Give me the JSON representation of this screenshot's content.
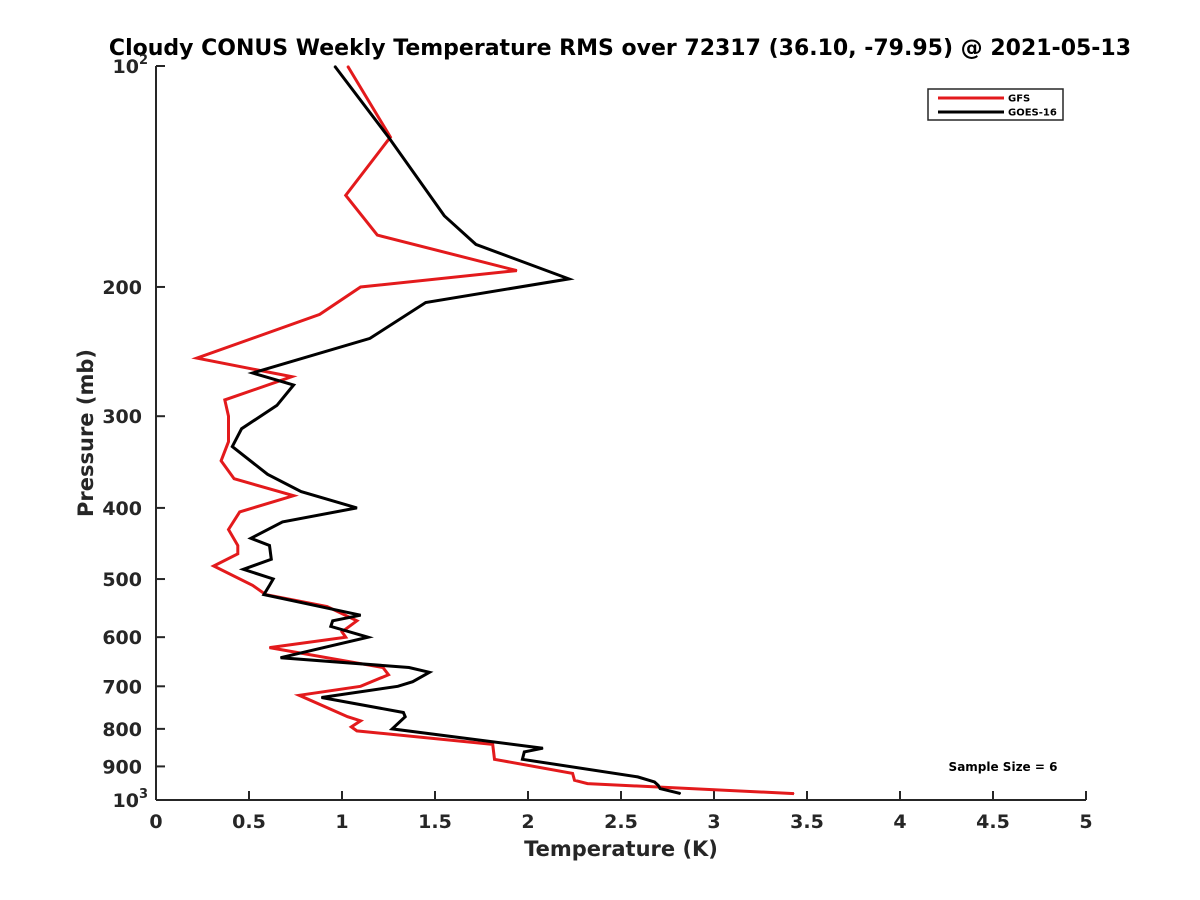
{
  "chart_data": {
    "type": "line",
    "title": "Cloudy CONUS Weekly Temperature RMS over 72317 (36.10, -79.95) @ 2021-05-13",
    "xlabel": "Temperature (K)",
    "ylabel": "Pressure (mb)",
    "xlim": [
      0,
      5
    ],
    "ylim": [
      100,
      1000
    ],
    "y_scale": "log",
    "y_reversed": true,
    "x_ticks": [
      "0",
      "0.5",
      "1",
      "1.5",
      "2",
      "2.5",
      "3",
      "3.5",
      "4",
      "4.5",
      "5"
    ],
    "x_tick_values": [
      0,
      0.5,
      1,
      1.5,
      2,
      2.5,
      3,
      3.5,
      4,
      4.5,
      5
    ],
    "y_ticks": [
      {
        "value": 100,
        "base": "10",
        "exp": "2"
      },
      {
        "value": 200,
        "label": "200"
      },
      {
        "value": 300,
        "label": "300"
      },
      {
        "value": 400,
        "label": "400"
      },
      {
        "value": 500,
        "label": "500"
      },
      {
        "value": 600,
        "label": "600"
      },
      {
        "value": 700,
        "label": "700"
      },
      {
        "value": 800,
        "label": "800"
      },
      {
        "value": 900,
        "label": "900"
      },
      {
        "value": 1000,
        "base": "10",
        "exp": "3"
      }
    ],
    "grid": false,
    "legend_position": "top-right",
    "annotation": "Sample Size = 6",
    "series": [
      {
        "name": "GFS",
        "color": "#e31a1c",
        "points": [
          [
            1.03,
            100
          ],
          [
            1.26,
            125
          ],
          [
            1.02,
            150
          ],
          [
            1.19,
            170
          ],
          [
            1.94,
            190
          ],
          [
            1.1,
            200
          ],
          [
            0.88,
            218
          ],
          [
            0.22,
            250
          ],
          [
            0.73,
            265
          ],
          [
            0.37,
            285
          ],
          [
            0.39,
            300
          ],
          [
            0.39,
            325
          ],
          [
            0.35,
            345
          ],
          [
            0.42,
            365
          ],
          [
            0.74,
            385
          ],
          [
            0.45,
            405
          ],
          [
            0.39,
            428
          ],
          [
            0.44,
            450
          ],
          [
            0.44,
            462
          ],
          [
            0.31,
            480
          ],
          [
            0.52,
            510
          ],
          [
            0.59,
            525
          ],
          [
            0.92,
            545
          ],
          [
            1.08,
            570
          ],
          [
            1.0,
            590
          ],
          [
            1.02,
            600
          ],
          [
            0.61,
            620
          ],
          [
            1.22,
            660
          ],
          [
            1.25,
            675
          ],
          [
            1.1,
            700
          ],
          [
            0.77,
            720
          ],
          [
            1.03,
            770
          ],
          [
            1.1,
            780
          ],
          [
            1.05,
            795
          ],
          [
            1.08,
            805
          ],
          [
            1.81,
            840
          ],
          [
            1.82,
            880
          ],
          [
            2.24,
            920
          ],
          [
            2.25,
            940
          ],
          [
            2.32,
            950
          ],
          [
            3.43,
            980
          ]
        ]
      },
      {
        "name": "GOES-16",
        "color": "#000000",
        "points": [
          [
            0.96,
            100
          ],
          [
            1.25,
            125
          ],
          [
            1.55,
            160
          ],
          [
            1.72,
            175
          ],
          [
            2.22,
            195
          ],
          [
            1.45,
            210
          ],
          [
            1.15,
            235
          ],
          [
            0.52,
            262
          ],
          [
            0.74,
            272
          ],
          [
            0.65,
            290
          ],
          [
            0.46,
            312
          ],
          [
            0.41,
            330
          ],
          [
            0.6,
            360
          ],
          [
            0.78,
            380
          ],
          [
            1.08,
            400
          ],
          [
            0.68,
            418
          ],
          [
            0.51,
            440
          ],
          [
            0.61,
            450
          ],
          [
            0.62,
            470
          ],
          [
            0.47,
            485
          ],
          [
            0.63,
            500
          ],
          [
            0.61,
            510
          ],
          [
            0.58,
            525
          ],
          [
            1.1,
            560
          ],
          [
            0.95,
            570
          ],
          [
            0.94,
            580
          ],
          [
            1.14,
            600
          ],
          [
            0.67,
            640
          ],
          [
            1.36,
            660
          ],
          [
            1.47,
            670
          ],
          [
            1.38,
            690
          ],
          [
            1.3,
            700
          ],
          [
            0.89,
            725
          ],
          [
            1.33,
            760
          ],
          [
            1.34,
            770
          ],
          [
            1.27,
            800
          ],
          [
            2.08,
            850
          ],
          [
            1.98,
            860
          ],
          [
            1.97,
            880
          ],
          [
            2.59,
            930
          ],
          [
            2.68,
            945
          ],
          [
            2.7,
            955
          ],
          [
            2.71,
            965
          ],
          [
            2.82,
            980
          ]
        ]
      }
    ]
  }
}
